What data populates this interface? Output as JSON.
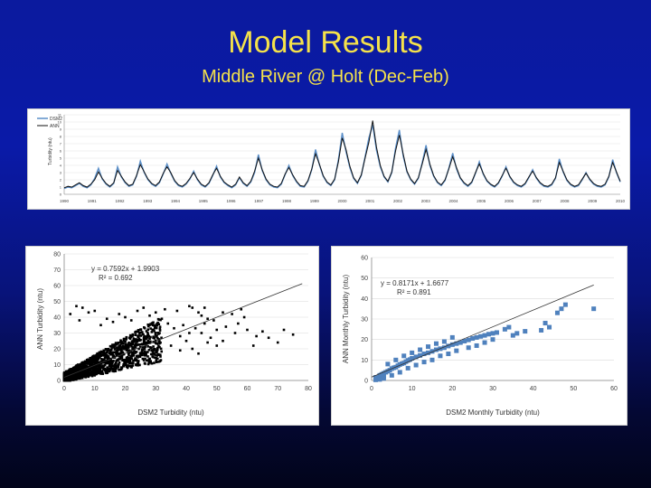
{
  "slide": {
    "title": "Model Results",
    "subtitle": "Middle River @ Holt (Dec-Feb)"
  },
  "colors": {
    "background_top": "#0b1a9e",
    "title_color": "#f5e24a",
    "dsm2_line": "#5b8fc9",
    "ann_line": "#111111",
    "scatter_black": "#000000",
    "scatter_blue": "#4f81bd"
  },
  "chart_data": [
    {
      "type": "line",
      "legend": [
        "DSM2",
        "ANN"
      ],
      "legend_placement": "top-left",
      "ylabel": "Turbidity (ntu)",
      "ylim": [
        0,
        11
      ],
      "yticks": [
        0,
        1,
        2,
        3,
        4,
        5,
        6,
        7,
        8,
        9,
        10,
        11
      ],
      "xticks": [
        "1990",
        "1991",
        "1992",
        "1993",
        "1994",
        "1995",
        "1996",
        "1997",
        "1998",
        "1999",
        "2000",
        "2001",
        "2002",
        "2003",
        "2004",
        "2005",
        "2006",
        "2007",
        "2008",
        "2009",
        "2010"
      ],
      "series": [
        {
          "name": "DSM2",
          "values": [
            0.8,
            1.0,
            0.9,
            1.2,
            1.5,
            1.1,
            0.9,
            1.3,
            2.2,
            3.6,
            2.1,
            1.4,
            1.0,
            1.5,
            3.8,
            2.4,
            1.6,
            1.1,
            1.3,
            2.5,
            4.6,
            3.0,
            2.0,
            1.4,
            1.1,
            1.6,
            2.8,
            4.2,
            2.9,
            1.8,
            1.2,
            1.0,
            1.4,
            2.1,
            3.2,
            2.0,
            1.3,
            1.0,
            1.5,
            2.6,
            3.9,
            2.4,
            1.6,
            1.2,
            0.9,
            1.3,
            2.3,
            1.5,
            1.1,
            1.7,
            3.0,
            5.5,
            3.3,
            2.0,
            1.3,
            1.0,
            0.9,
            1.4,
            2.7,
            4.0,
            2.6,
            1.7,
            1.1,
            1.0,
            1.8,
            3.4,
            6.2,
            4.1,
            2.5,
            1.6,
            1.2,
            2.0,
            4.8,
            8.5,
            5.9,
            3.7,
            2.2,
            1.5,
            2.6,
            5.2,
            7.8,
            9.6,
            6.1,
            3.8,
            2.4,
            1.7,
            3.0,
            6.4,
            8.9,
            5.3,
            3.1,
            2.0,
            1.4,
            2.2,
            4.4,
            6.8,
            4.0,
            2.5,
            1.6,
            1.2,
            1.9,
            3.6,
            5.7,
            3.5,
            2.2,
            1.5,
            1.1,
            1.6,
            2.9,
            4.5,
            2.8,
            1.8,
            1.3,
            1.0,
            1.5,
            2.5,
            3.8,
            2.4,
            1.6,
            1.2,
            1.0,
            1.4,
            2.3,
            3.4,
            2.2,
            1.5,
            1.1,
            1.0,
            1.3,
            2.2,
            4.9,
            3.1,
            1.9,
            1.3,
            1.0,
            1.2,
            2.0,
            3.0,
            2.0,
            1.4,
            1.1,
            1.0,
            1.3,
            2.4,
            4.8,
            3.0,
            1.7
          ]
        },
        {
          "name": "ANN",
          "values": [
            0.9,
            1.1,
            1.0,
            1.3,
            1.6,
            1.2,
            1.0,
            1.4,
            2.0,
            3.1,
            2.2,
            1.5,
            1.1,
            1.6,
            3.3,
            2.5,
            1.7,
            1.2,
            1.4,
            2.6,
            4.1,
            3.1,
            2.1,
            1.5,
            1.2,
            1.7,
            2.9,
            3.8,
            3.0,
            1.9,
            1.3,
            1.1,
            1.5,
            2.2,
            3.0,
            2.1,
            1.4,
            1.1,
            1.6,
            2.7,
            3.6,
            2.5,
            1.7,
            1.3,
            1.0,
            1.4,
            2.4,
            1.6,
            1.2,
            1.8,
            3.2,
            5.0,
            3.4,
            2.1,
            1.4,
            1.1,
            1.0,
            1.5,
            2.8,
            3.7,
            2.7,
            1.8,
            1.2,
            1.1,
            1.9,
            3.5,
            5.6,
            4.2,
            2.6,
            1.7,
            1.3,
            2.1,
            4.5,
            7.8,
            6.2,
            3.9,
            2.3,
            1.6,
            2.7,
            5.0,
            7.2,
            10.2,
            6.5,
            4.0,
            2.5,
            1.8,
            3.1,
            6.0,
            8.2,
            5.6,
            3.2,
            2.1,
            1.5,
            2.3,
            4.2,
            6.2,
            4.2,
            2.6,
            1.7,
            1.3,
            2.0,
            3.5,
            5.2,
            3.7,
            2.3,
            1.6,
            1.2,
            1.7,
            3.0,
            4.2,
            2.9,
            1.9,
            1.4,
            1.1,
            1.6,
            2.6,
            3.6,
            2.5,
            1.7,
            1.3,
            1.1,
            1.5,
            2.4,
            3.2,
            2.3,
            1.6,
            1.2,
            1.1,
            1.4,
            2.3,
            4.4,
            3.2,
            2.0,
            1.4,
            1.1,
            1.3,
            2.1,
            2.9,
            2.1,
            1.5,
            1.2,
            1.1,
            1.4,
            2.5,
            4.4,
            3.1,
            1.8
          ]
        }
      ]
    },
    {
      "type": "scatter",
      "xlabel": "DSM2 Turbidity (ntu)",
      "ylabel": "ANN Turbidity (ntu)",
      "xlim": [
        0,
        80
      ],
      "ylim": [
        0,
        80
      ],
      "xticks": [
        0,
        10,
        20,
        30,
        40,
        50,
        60,
        70,
        80
      ],
      "yticks": [
        0,
        10,
        20,
        30,
        40,
        50,
        60,
        70,
        80
      ],
      "equation": "y = 0.7592x + 1.9903",
      "r_squared": "R² = 0.692",
      "trendline": {
        "slope": 0.7592,
        "intercept": 1.9903
      },
      "clusters": [
        {
          "x_range": [
            0,
            30
          ],
          "y_core_slope": 0.75,
          "spread": 8
        },
        {
          "x_range": [
            30,
            50
          ],
          "y_core_slope": 0.75,
          "spread": 12
        }
      ],
      "points": [
        [
          33,
          45
        ],
        [
          37,
          44
        ],
        [
          42,
          46
        ],
        [
          44,
          43
        ],
        [
          45,
          41
        ],
        [
          47,
          39
        ],
        [
          46,
          36
        ],
        [
          49,
          38
        ],
        [
          52,
          43
        ],
        [
          55,
          42
        ],
        [
          58,
          45
        ],
        [
          59,
          40
        ],
        [
          48,
          27
        ],
        [
          50,
          22
        ],
        [
          52,
          25
        ],
        [
          56,
          30
        ],
        [
          62,
          22
        ],
        [
          65,
          31
        ],
        [
          72,
          32
        ],
        [
          75,
          29
        ],
        [
          34,
          36
        ],
        [
          36,
          33
        ],
        [
          39,
          35
        ],
        [
          41,
          30
        ],
        [
          43,
          33
        ],
        [
          38,
          28
        ],
        [
          40,
          25
        ],
        [
          45,
          30
        ],
        [
          35,
          22
        ],
        [
          38,
          19
        ],
        [
          42,
          20
        ],
        [
          44,
          17
        ],
        [
          47,
          24
        ],
        [
          32,
          39
        ],
        [
          30,
          43
        ],
        [
          28,
          41
        ],
        [
          26,
          46
        ],
        [
          24,
          44
        ],
        [
          22,
          38
        ],
        [
          20,
          40
        ],
        [
          18,
          42
        ],
        [
          16,
          37
        ],
        [
          14,
          39
        ],
        [
          12,
          35
        ],
        [
          10,
          44
        ],
        [
          8,
          43
        ],
        [
          6,
          46
        ],
        [
          4,
          47
        ],
        [
          2,
          42
        ],
        [
          5,
          38
        ],
        [
          50,
          32
        ],
        [
          53,
          34
        ],
        [
          57,
          36
        ],
        [
          60,
          32
        ],
        [
          63,
          28
        ],
        [
          67,
          27
        ],
        [
          70,
          24
        ],
        [
          46,
          46
        ],
        [
          41,
          47
        ],
        [
          29,
          35
        ]
      ]
    },
    {
      "type": "scatter",
      "xlabel": "DSM2 Monthly Turbidity (ntu)",
      "ylabel": "ANN Monthly Turbidity (ntu)",
      "xlim": [
        0,
        60
      ],
      "ylim": [
        0,
        60
      ],
      "xticks": [
        0,
        10,
        20,
        30,
        40,
        50,
        60
      ],
      "yticks": [
        0,
        10,
        20,
        30,
        40,
        50,
        60
      ],
      "equation": "y = 0.8171x + 1.6677",
      "r_squared": "R² = 0.891",
      "trendline": {
        "slope": 0.8171,
        "intercept": 1.6677
      },
      "points": [
        [
          1,
          1.5
        ],
        [
          2,
          2.5
        ],
        [
          2.5,
          3
        ],
        [
          3,
          3.5
        ],
        [
          3.5,
          4
        ],
        [
          4,
          4.5
        ],
        [
          4.5,
          5
        ],
        [
          5,
          5.8
        ],
        [
          5.5,
          6.2
        ],
        [
          6,
          6.5
        ],
        [
          6.5,
          7.2
        ],
        [
          7,
          7.8
        ],
        [
          7.5,
          8.2
        ],
        [
          8,
          8.5
        ],
        [
          8.5,
          9.2
        ],
        [
          9,
          9.8
        ],
        [
          9.5,
          10.2
        ],
        [
          10,
          10.8
        ],
        [
          11,
          11.5
        ],
        [
          12,
          12.2
        ],
        [
          13,
          13
        ],
        [
          14,
          13.5
        ],
        [
          15,
          14.2
        ],
        [
          16,
          15
        ],
        [
          17,
          15.5
        ],
        [
          18,
          16
        ],
        [
          19,
          16.8
        ],
        [
          20,
          17.5
        ],
        [
          21,
          18
        ],
        [
          22,
          18.5
        ],
        [
          23,
          19.2
        ],
        [
          24,
          19.8
        ],
        [
          25,
          20.5
        ],
        [
          26,
          21
        ],
        [
          27,
          21.5
        ],
        [
          28,
          22
        ],
        [
          29,
          22.6
        ],
        [
          30,
          23
        ],
        [
          31,
          23.4
        ],
        [
          3,
          1
        ],
        [
          5,
          2.5
        ],
        [
          7,
          4
        ],
        [
          9,
          6
        ],
        [
          11,
          7.5
        ],
        [
          13,
          9
        ],
        [
          15,
          10
        ],
        [
          17,
          12
        ],
        [
          19,
          13
        ],
        [
          21,
          14.5
        ],
        [
          24,
          16
        ],
        [
          26,
          17
        ],
        [
          28,
          18.5
        ],
        [
          30,
          20
        ],
        [
          4,
          8
        ],
        [
          6,
          10
        ],
        [
          8,
          12
        ],
        [
          10,
          13.5
        ],
        [
          12,
          15
        ],
        [
          14,
          16.5
        ],
        [
          16,
          18
        ],
        [
          18,
          19
        ],
        [
          20,
          21
        ],
        [
          35,
          22
        ],
        [
          36,
          23
        ],
        [
          38,
          24
        ],
        [
          42,
          24.5
        ],
        [
          44,
          26
        ],
        [
          43,
          28
        ],
        [
          46,
          33
        ],
        [
          47,
          35
        ],
        [
          48,
          37
        ],
        [
          55,
          35
        ],
        [
          2,
          0.5
        ],
        [
          1,
          0.3
        ],
        [
          3,
          2
        ],
        [
          33,
          25
        ],
        [
          34,
          26
        ]
      ]
    }
  ]
}
